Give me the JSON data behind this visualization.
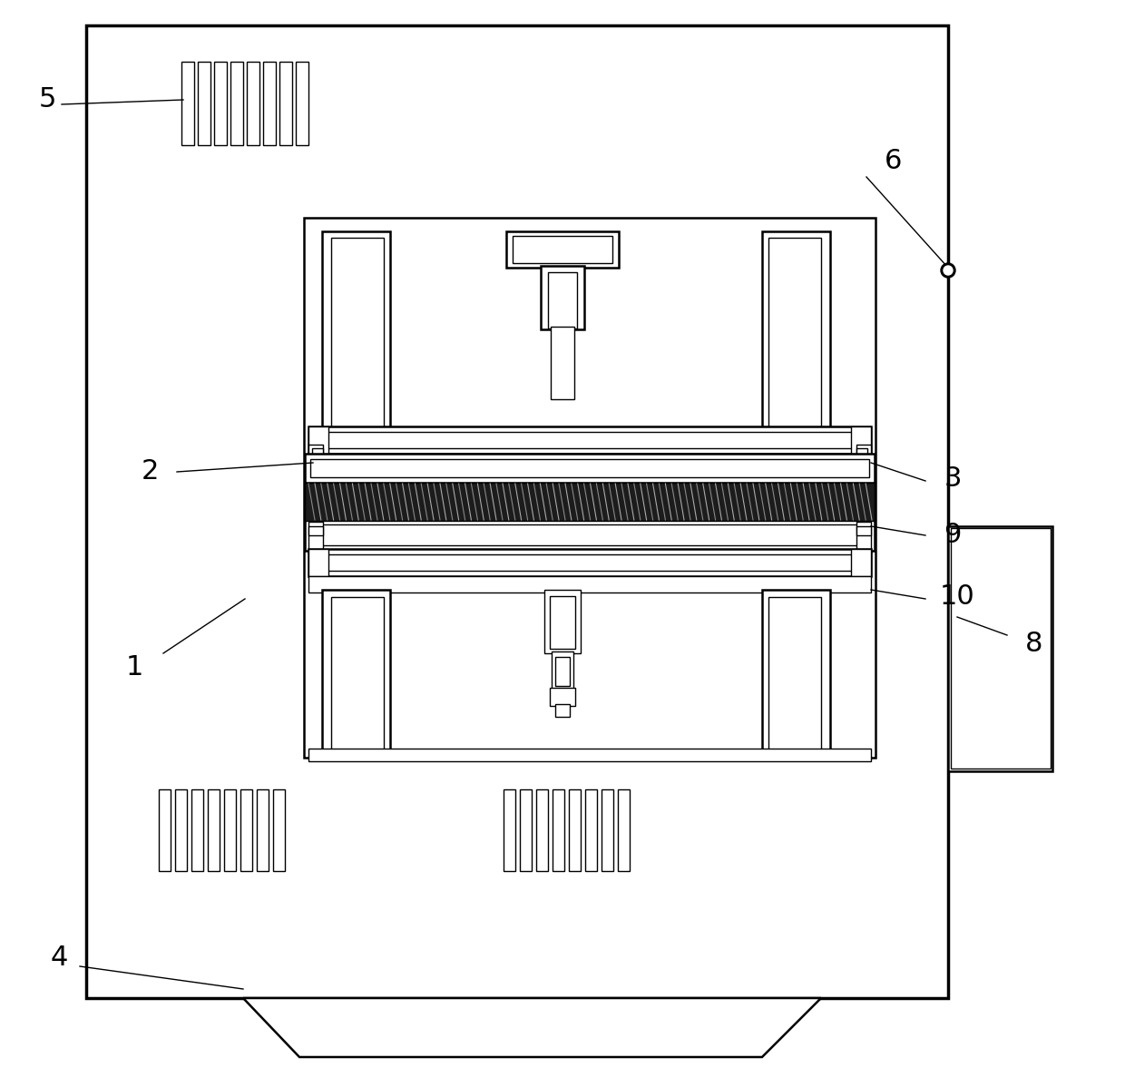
{
  "bg_color": "#ffffff",
  "line_color": "#000000",
  "fig_width": 12.4,
  "fig_height": 11.98,
  "lw1": 1.0,
  "lw2": 1.8,
  "lw3": 2.5
}
